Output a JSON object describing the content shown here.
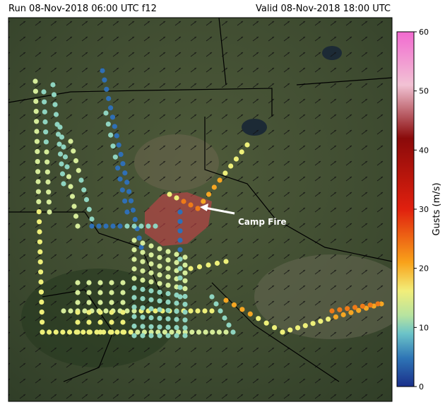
{
  "header": {
    "run": "Run 08-Nov-2018 06:00 UTC f12",
    "valid": "Valid 08-Nov-2018 18:00 UTC"
  },
  "annotation": "Camp Fire",
  "colorbar": {
    "label": "Gusts (m/s)",
    "lim": [
      0,
      60
    ],
    "ticks": [
      0,
      10,
      20,
      30,
      40,
      50,
      60
    ]
  }
}
